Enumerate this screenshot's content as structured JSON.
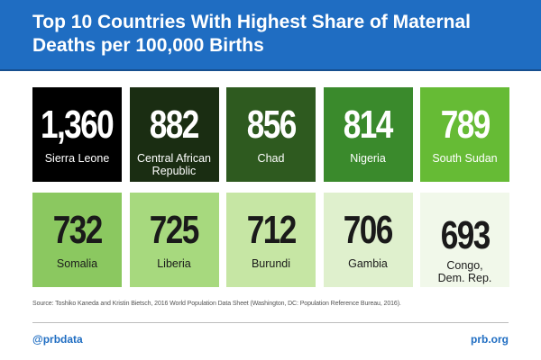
{
  "header": {
    "title": "Top 10 Countries With Highest Share of Maternal Deaths per 100,000 Births"
  },
  "chart_data": {
    "type": "table",
    "title": "Top 10 Countries With Highest Share of Maternal Deaths per 100,000 Births",
    "value_labels": [
      "1,360",
      "882",
      "856",
      "814",
      "789",
      "732",
      "725",
      "712",
      "706",
      "693"
    ],
    "categories": [
      "Sierra Leone",
      "Central African Republic",
      "Chad",
      "Nigeria",
      "South Sudan",
      "Somalia",
      "Liberia",
      "Burundi",
      "Gambia",
      "Congo, Dem. Rep."
    ],
    "values": [
      1360,
      882,
      856,
      814,
      789,
      732,
      725,
      712,
      706,
      693
    ],
    "tile_colors": [
      "#000000",
      "#1a2d12",
      "#2e5a1f",
      "#3a8a2c",
      "#66bb35",
      "#8bc860",
      "#a7d97e",
      "#c6e6a4",
      "#dff0cd",
      "#f1f8ea"
    ],
    "text_colors": [
      "#ffffff",
      "#ffffff",
      "#ffffff",
      "#ffffff",
      "#ffffff",
      "#1a1a1a",
      "#1a1a1a",
      "#1a1a1a",
      "#1a1a1a",
      "#1a1a1a"
    ]
  },
  "source": "Source: Toshiko Kaneda and Kristin Bietsch, 2016 World Population Data Sheet (Washington, DC: Population Reference Bureau, 2016).",
  "footer": {
    "handle": "@prbdata",
    "site": "prb.org"
  },
  "colors": {
    "header_bg": "#1f6dc2",
    "footer_text": "#1f6dc2"
  }
}
